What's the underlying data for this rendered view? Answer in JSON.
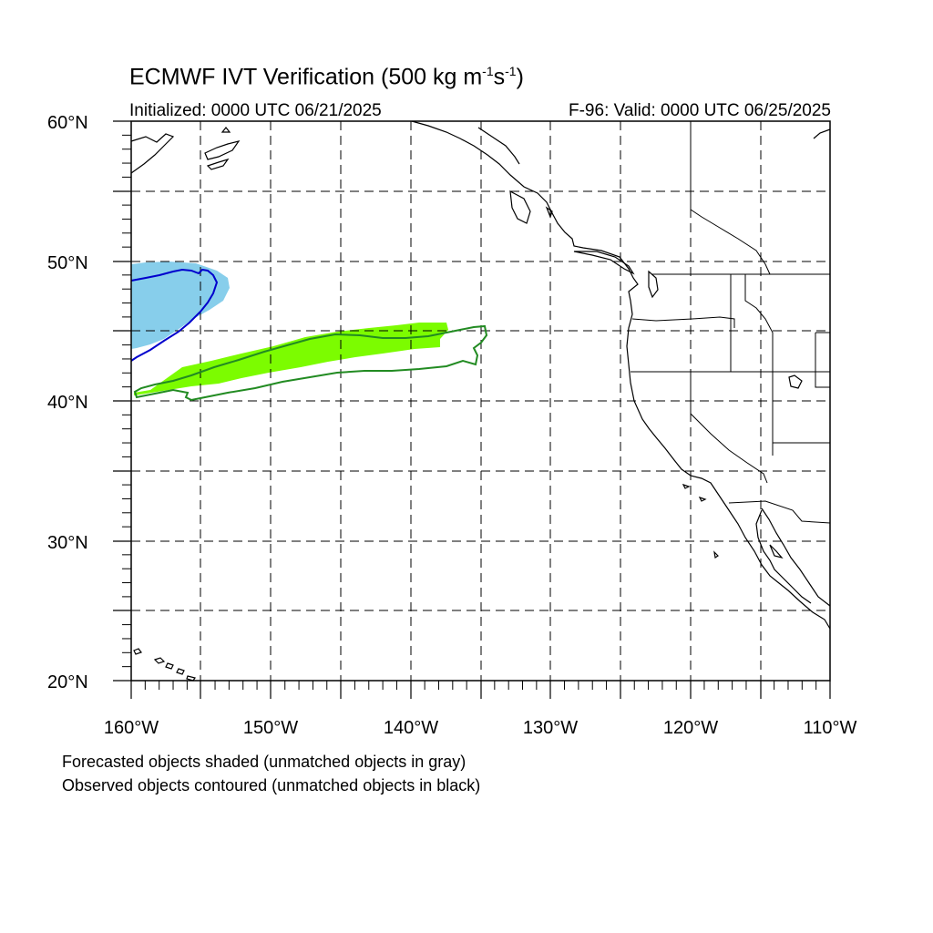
{
  "title": {
    "prefix": "ECMWF IVT Verification (500 kg m",
    "exp1": "-1",
    "mid": "s",
    "exp2": "-1",
    "suffix": ")"
  },
  "initialized": "Initialized: 0000 UTC 06/21/2025",
  "valid": "F-96: Valid: 0000 UTC 06/25/2025",
  "lat_labels": [
    "60°N",
    "50°N",
    "40°N",
    "30°N",
    "20°N"
  ],
  "lon_labels": [
    "160°W",
    "150°W",
    "140°W",
    "130°W",
    "120°W",
    "110°W"
  ],
  "notes": [
    "Forecasted objects shaded (unmatched objects in gray)",
    "Observed objects contoured (unmatched objects in black)"
  ],
  "map": {
    "lon_range": [
      -160,
      -110
    ],
    "lat_range": [
      20,
      60
    ],
    "grid_style": "dashed",
    "grid_interval_deg": 5,
    "colors": {
      "blue_forecast_fill": "#87CEEB",
      "blue_observed_contour": "#0000CD",
      "green_forecast_fill": "#7CFC00",
      "green_observed_contour": "#228B22"
    },
    "objects": [
      {
        "name": "forecast-blue",
        "kind": "shaded"
      },
      {
        "name": "observed-blue",
        "kind": "contour"
      },
      {
        "name": "forecast-green",
        "kind": "shaded"
      },
      {
        "name": "observed-green",
        "kind": "contour"
      }
    ]
  }
}
